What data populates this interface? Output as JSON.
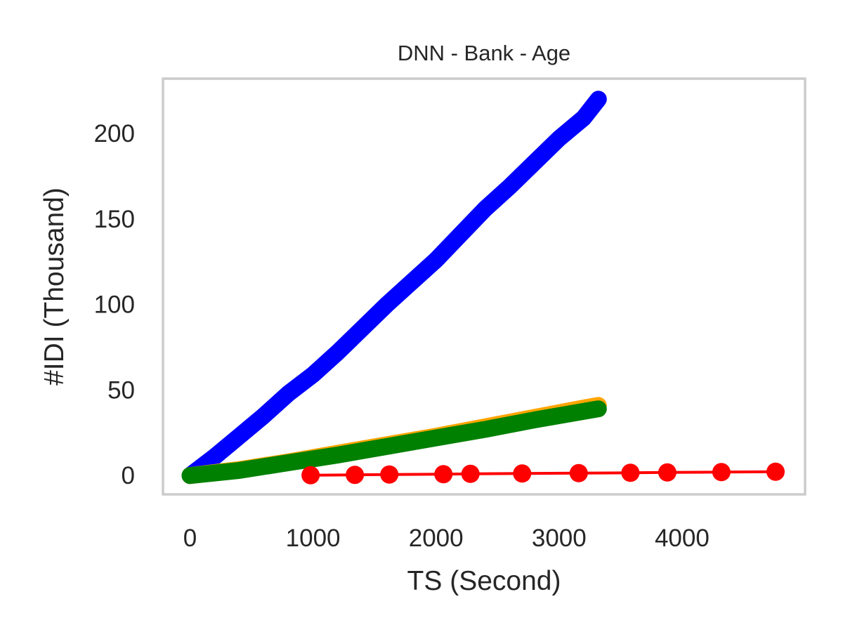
{
  "chart_data": {
    "type": "line",
    "title": "DNN - Bank - Age",
    "xlabel": "TS (Second)",
    "ylabel": "#IDI (Thousand)",
    "xlim": [
      -220,
      5000
    ],
    "ylim": [
      -11,
      232
    ],
    "xticks": [
      0,
      1000,
      2000,
      3000,
      4000
    ],
    "yticks": [
      0,
      50,
      100,
      150,
      200
    ],
    "grid": false,
    "legend": "none",
    "series": [
      {
        "color": "#0000ff",
        "style": "dense-markers",
        "x": [
          0,
          200,
          400,
          600,
          800,
          1000,
          1200,
          1400,
          1600,
          1800,
          2000,
          2200,
          2400,
          2600,
          2800,
          3000,
          3200,
          3320
        ],
        "y": [
          0,
          11,
          23,
          35,
          48,
          59,
          72,
          86,
          100,
          113,
          126,
          141,
          156,
          169,
          183,
          197,
          209,
          220
        ]
      },
      {
        "color": "#ffa500",
        "style": "dense-markers",
        "x": [
          0,
          400,
          800,
          1200,
          1600,
          2000,
          2400,
          2800,
          3200,
          3320
        ],
        "y": [
          0,
          3.5,
          8,
          13,
          18,
          23,
          28.5,
          34,
          39.5,
          41
        ]
      },
      {
        "color": "#008000",
        "style": "dense-markers",
        "x": [
          0,
          400,
          800,
          1200,
          1600,
          2000,
          2400,
          2800,
          3200,
          3320
        ],
        "y": [
          0,
          3,
          7.5,
          12,
          17,
          22,
          27,
          32.5,
          37.5,
          39
        ]
      },
      {
        "color": "#ff0000",
        "style": "line-markers",
        "x": [
          980,
          1340,
          1620,
          2060,
          2280,
          2700,
          3160,
          3580,
          3880,
          4320,
          4760
        ],
        "y": [
          0.2,
          0.4,
          0.6,
          0.8,
          1.0,
          1.2,
          1.4,
          1.6,
          1.8,
          2.0,
          2.2
        ]
      }
    ]
  }
}
